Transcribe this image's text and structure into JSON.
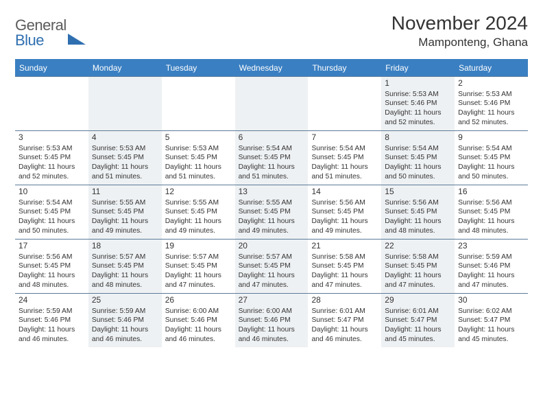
{
  "logo": {
    "text1": "General",
    "text2": "Blue"
  },
  "title": "November 2024",
  "location": "Mamponteng, Ghana",
  "colors": {
    "header_bg": "#3a7fc2",
    "header_text": "#ffffff",
    "row_border": "#5a7a99",
    "shade_bg": "#eef1f3",
    "body_text": "#333333",
    "logo_gray": "#5b5b5b",
    "logo_blue": "#2f6fb0"
  },
  "fonts": {
    "title_pt": 28,
    "location_pt": 17,
    "dow_pt": 12,
    "daynum_pt": 12,
    "body_pt": 10.3
  },
  "dow": [
    "Sunday",
    "Monday",
    "Tuesday",
    "Wednesday",
    "Thursday",
    "Friday",
    "Saturday"
  ],
  "weeks": [
    [
      {
        "n": "",
        "shade": false,
        "sr": "",
        "ss": "",
        "dl": ""
      },
      {
        "n": "",
        "shade": true,
        "sr": "",
        "ss": "",
        "dl": ""
      },
      {
        "n": "",
        "shade": false,
        "sr": "",
        "ss": "",
        "dl": ""
      },
      {
        "n": "",
        "shade": true,
        "sr": "",
        "ss": "",
        "dl": ""
      },
      {
        "n": "",
        "shade": false,
        "sr": "",
        "ss": "",
        "dl": ""
      },
      {
        "n": "1",
        "shade": true,
        "sr": "Sunrise: 5:53 AM",
        "ss": "Sunset: 5:46 PM",
        "dl": "Daylight: 11 hours and 52 minutes."
      },
      {
        "n": "2",
        "shade": false,
        "sr": "Sunrise: 5:53 AM",
        "ss": "Sunset: 5:46 PM",
        "dl": "Daylight: 11 hours and 52 minutes."
      }
    ],
    [
      {
        "n": "3",
        "shade": false,
        "sr": "Sunrise: 5:53 AM",
        "ss": "Sunset: 5:45 PM",
        "dl": "Daylight: 11 hours and 52 minutes."
      },
      {
        "n": "4",
        "shade": true,
        "sr": "Sunrise: 5:53 AM",
        "ss": "Sunset: 5:45 PM",
        "dl": "Daylight: 11 hours and 51 minutes."
      },
      {
        "n": "5",
        "shade": false,
        "sr": "Sunrise: 5:53 AM",
        "ss": "Sunset: 5:45 PM",
        "dl": "Daylight: 11 hours and 51 minutes."
      },
      {
        "n": "6",
        "shade": true,
        "sr": "Sunrise: 5:54 AM",
        "ss": "Sunset: 5:45 PM",
        "dl": "Daylight: 11 hours and 51 minutes."
      },
      {
        "n": "7",
        "shade": false,
        "sr": "Sunrise: 5:54 AM",
        "ss": "Sunset: 5:45 PM",
        "dl": "Daylight: 11 hours and 51 minutes."
      },
      {
        "n": "8",
        "shade": true,
        "sr": "Sunrise: 5:54 AM",
        "ss": "Sunset: 5:45 PM",
        "dl": "Daylight: 11 hours and 50 minutes."
      },
      {
        "n": "9",
        "shade": false,
        "sr": "Sunrise: 5:54 AM",
        "ss": "Sunset: 5:45 PM",
        "dl": "Daylight: 11 hours and 50 minutes."
      }
    ],
    [
      {
        "n": "10",
        "shade": false,
        "sr": "Sunrise: 5:54 AM",
        "ss": "Sunset: 5:45 PM",
        "dl": "Daylight: 11 hours and 50 minutes."
      },
      {
        "n": "11",
        "shade": true,
        "sr": "Sunrise: 5:55 AM",
        "ss": "Sunset: 5:45 PM",
        "dl": "Daylight: 11 hours and 49 minutes."
      },
      {
        "n": "12",
        "shade": false,
        "sr": "Sunrise: 5:55 AM",
        "ss": "Sunset: 5:45 PM",
        "dl": "Daylight: 11 hours and 49 minutes."
      },
      {
        "n": "13",
        "shade": true,
        "sr": "Sunrise: 5:55 AM",
        "ss": "Sunset: 5:45 PM",
        "dl": "Daylight: 11 hours and 49 minutes."
      },
      {
        "n": "14",
        "shade": false,
        "sr": "Sunrise: 5:56 AM",
        "ss": "Sunset: 5:45 PM",
        "dl": "Daylight: 11 hours and 49 minutes."
      },
      {
        "n": "15",
        "shade": true,
        "sr": "Sunrise: 5:56 AM",
        "ss": "Sunset: 5:45 PM",
        "dl": "Daylight: 11 hours and 48 minutes."
      },
      {
        "n": "16",
        "shade": false,
        "sr": "Sunrise: 5:56 AM",
        "ss": "Sunset: 5:45 PM",
        "dl": "Daylight: 11 hours and 48 minutes."
      }
    ],
    [
      {
        "n": "17",
        "shade": false,
        "sr": "Sunrise: 5:56 AM",
        "ss": "Sunset: 5:45 PM",
        "dl": "Daylight: 11 hours and 48 minutes."
      },
      {
        "n": "18",
        "shade": true,
        "sr": "Sunrise: 5:57 AM",
        "ss": "Sunset: 5:45 PM",
        "dl": "Daylight: 11 hours and 48 minutes."
      },
      {
        "n": "19",
        "shade": false,
        "sr": "Sunrise: 5:57 AM",
        "ss": "Sunset: 5:45 PM",
        "dl": "Daylight: 11 hours and 47 minutes."
      },
      {
        "n": "20",
        "shade": true,
        "sr": "Sunrise: 5:57 AM",
        "ss": "Sunset: 5:45 PM",
        "dl": "Daylight: 11 hours and 47 minutes."
      },
      {
        "n": "21",
        "shade": false,
        "sr": "Sunrise: 5:58 AM",
        "ss": "Sunset: 5:45 PM",
        "dl": "Daylight: 11 hours and 47 minutes."
      },
      {
        "n": "22",
        "shade": true,
        "sr": "Sunrise: 5:58 AM",
        "ss": "Sunset: 5:45 PM",
        "dl": "Daylight: 11 hours and 47 minutes."
      },
      {
        "n": "23",
        "shade": false,
        "sr": "Sunrise: 5:59 AM",
        "ss": "Sunset: 5:46 PM",
        "dl": "Daylight: 11 hours and 47 minutes."
      }
    ],
    [
      {
        "n": "24",
        "shade": false,
        "sr": "Sunrise: 5:59 AM",
        "ss": "Sunset: 5:46 PM",
        "dl": "Daylight: 11 hours and 46 minutes."
      },
      {
        "n": "25",
        "shade": true,
        "sr": "Sunrise: 5:59 AM",
        "ss": "Sunset: 5:46 PM",
        "dl": "Daylight: 11 hours and 46 minutes."
      },
      {
        "n": "26",
        "shade": false,
        "sr": "Sunrise: 6:00 AM",
        "ss": "Sunset: 5:46 PM",
        "dl": "Daylight: 11 hours and 46 minutes."
      },
      {
        "n": "27",
        "shade": true,
        "sr": "Sunrise: 6:00 AM",
        "ss": "Sunset: 5:46 PM",
        "dl": "Daylight: 11 hours and 46 minutes."
      },
      {
        "n": "28",
        "shade": false,
        "sr": "Sunrise: 6:01 AM",
        "ss": "Sunset: 5:47 PM",
        "dl": "Daylight: 11 hours and 46 minutes."
      },
      {
        "n": "29",
        "shade": true,
        "sr": "Sunrise: 6:01 AM",
        "ss": "Sunset: 5:47 PM",
        "dl": "Daylight: 11 hours and 45 minutes."
      },
      {
        "n": "30",
        "shade": false,
        "sr": "Sunrise: 6:02 AM",
        "ss": "Sunset: 5:47 PM",
        "dl": "Daylight: 11 hours and 45 minutes."
      }
    ]
  ]
}
